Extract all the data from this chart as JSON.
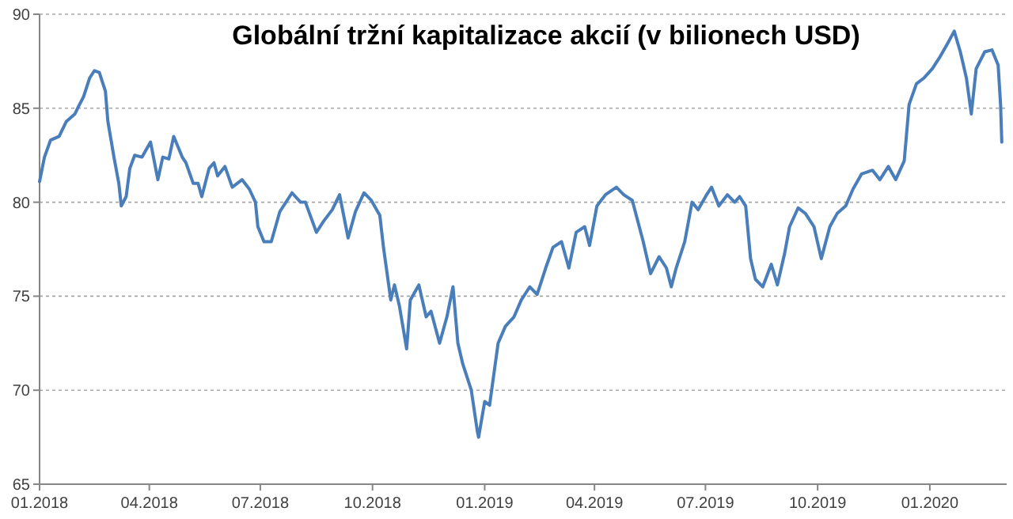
{
  "chart_data": {
    "type": "line",
    "title": "Globální tržní kapitalizace akcií (v bilionech USD)",
    "x": [
      "2018-01-01",
      "2018-01-05",
      "2018-01-10",
      "2018-01-17",
      "2018-01-23",
      "2018-01-30",
      "2018-02-02",
      "2018-02-06",
      "2018-02-11",
      "2018-02-15",
      "2018-02-19",
      "2018-02-24",
      "2018-02-26",
      "2018-03-03",
      "2018-03-07",
      "2018-03-09",
      "2018-03-13",
      "2018-03-16",
      "2018-03-20",
      "2018-03-26",
      "2018-04-02",
      "2018-04-08",
      "2018-04-12",
      "2018-04-17",
      "2018-04-21",
      "2018-04-28",
      "2018-05-01",
      "2018-05-07",
      "2018-05-11",
      "2018-05-14",
      "2018-05-20",
      "2018-05-24",
      "2018-05-27",
      "2018-06-02",
      "2018-06-08",
      "2018-06-16",
      "2018-06-22",
      "2018-06-27",
      "2018-06-29",
      "2018-07-04",
      "2018-07-10",
      "2018-07-17",
      "2018-07-23",
      "2018-07-27",
      "2018-08-03",
      "2018-08-07",
      "2018-08-16",
      "2018-08-22",
      "2018-08-29",
      "2018-09-04",
      "2018-09-11",
      "2018-09-17",
      "2018-09-24",
      "2018-09-30",
      "2018-10-07",
      "2018-10-10",
      "2018-10-16",
      "2018-10-19",
      "2018-10-23",
      "2018-10-29",
      "2018-11-01",
      "2018-11-08",
      "2018-11-14",
      "2018-11-18",
      "2018-11-25",
      "2018-12-01",
      "2018-12-06",
      "2018-12-10",
      "2018-12-14",
      "2018-12-21",
      "2018-12-26",
      "2018-12-27",
      "2019-01-01",
      "2019-01-05",
      "2019-01-12",
      "2019-01-18",
      "2019-01-25",
      "2019-01-31",
      "2019-02-07",
      "2019-02-13",
      "2019-02-20",
      "2019-02-26",
      "2019-03-05",
      "2019-03-11",
      "2019-03-17",
      "2019-03-24",
      "2019-03-28",
      "2019-04-03",
      "2019-04-10",
      "2019-04-19",
      "2019-04-25",
      "2019-05-02",
      "2019-05-11",
      "2019-05-17",
      "2019-05-24",
      "2019-05-30",
      "2019-06-03",
      "2019-06-07",
      "2019-06-14",
      "2019-06-20",
      "2019-06-25",
      "2019-07-02",
      "2019-07-06",
      "2019-07-12",
      "2019-07-19",
      "2019-07-25",
      "2019-07-29",
      "2019-08-03",
      "2019-08-07",
      "2019-08-11",
      "2019-08-17",
      "2019-08-24",
      "2019-08-29",
      "2019-09-04",
      "2019-09-08",
      "2019-09-15",
      "2019-09-21",
      "2019-09-28",
      "2019-10-04",
      "2019-10-11",
      "2019-10-17",
      "2019-10-24",
      "2019-10-30",
      "2019-11-06",
      "2019-11-15",
      "2019-11-21",
      "2019-11-28",
      "2019-12-04",
      "2019-12-11",
      "2019-12-15",
      "2019-12-21",
      "2019-12-27",
      "2020-01-03",
      "2020-01-09",
      "2020-01-16",
      "2020-01-21",
      "2020-01-26",
      "2020-01-31",
      "2020-02-04",
      "2020-02-08",
      "2020-02-15",
      "2020-02-21",
      "2020-02-26",
      "2020-02-28",
      "2020-02-29"
    ],
    "series": [
      {
        "color": "#4a7ebb",
        "values": [
          81.1,
          82.4,
          83.3,
          83.5,
          84.3,
          84.7,
          85.1,
          85.6,
          86.6,
          87.0,
          86.9,
          85.9,
          84.3,
          82.4,
          81.0,
          79.8,
          80.3,
          81.8,
          82.5,
          82.4,
          83.2,
          81.2,
          82.4,
          82.3,
          83.5,
          82.4,
          82.1,
          81.0,
          81.0,
          80.3,
          81.8,
          82.1,
          81.4,
          81.9,
          80.8,
          81.2,
          80.7,
          80.0,
          78.7,
          77.9,
          77.9,
          79.5,
          80.1,
          80.5,
          80.0,
          80.0,
          78.4,
          79.0,
          79.6,
          80.4,
          78.1,
          79.5,
          80.5,
          80.1,
          79.3,
          77.6,
          74.8,
          75.6,
          74.5,
          72.2,
          74.8,
          75.6,
          73.9,
          74.2,
          72.5,
          73.9,
          75.5,
          72.5,
          71.4,
          70.0,
          67.8,
          67.5,
          69.4,
          69.2,
          72.5,
          73.4,
          73.9,
          74.8,
          75.5,
          75.1,
          76.5,
          77.6,
          77.9,
          76.5,
          78.4,
          78.7,
          77.7,
          79.8,
          80.4,
          80.8,
          80.4,
          80.1,
          77.9,
          76.2,
          77.1,
          76.5,
          75.5,
          76.5,
          77.9,
          80.0,
          79.6,
          80.4,
          80.8,
          79.8,
          80.4,
          80.0,
          80.3,
          79.8,
          77.0,
          75.9,
          75.5,
          76.7,
          75.6,
          77.3,
          78.7,
          79.7,
          79.4,
          78.7,
          77.0,
          78.7,
          79.4,
          79.8,
          80.7,
          81.5,
          81.7,
          81.2,
          81.9,
          81.2,
          82.2,
          85.2,
          86.3,
          86.6,
          87.1,
          87.7,
          88.5,
          89.1,
          88.0,
          86.6,
          84.7,
          87.1,
          88.0,
          88.1,
          87.3,
          85.2,
          83.2
        ]
      }
    ],
    "xlim": [
      "2018-01-01",
      "2020-03-04"
    ],
    "xticks": [
      {
        "value": "2018-01-01",
        "label": "01.2018"
      },
      {
        "value": "2018-04-01",
        "label": "04.2018"
      },
      {
        "value": "2018-07-01",
        "label": "07.2018"
      },
      {
        "value": "2018-10-01",
        "label": "10.2018"
      },
      {
        "value": "2019-01-01",
        "label": "01.2019"
      },
      {
        "value": "2019-04-01",
        "label": "04.2019"
      },
      {
        "value": "2019-07-01",
        "label": "07.2019"
      },
      {
        "value": "2019-10-01",
        "label": "10.2019"
      },
      {
        "value": "2020-01-01",
        "label": "01.2020"
      }
    ],
    "ylim": [
      65,
      90
    ],
    "yticks": [
      65,
      70,
      75,
      80,
      85,
      90
    ],
    "grid": "y",
    "marker": "none",
    "line_style": "solid"
  }
}
